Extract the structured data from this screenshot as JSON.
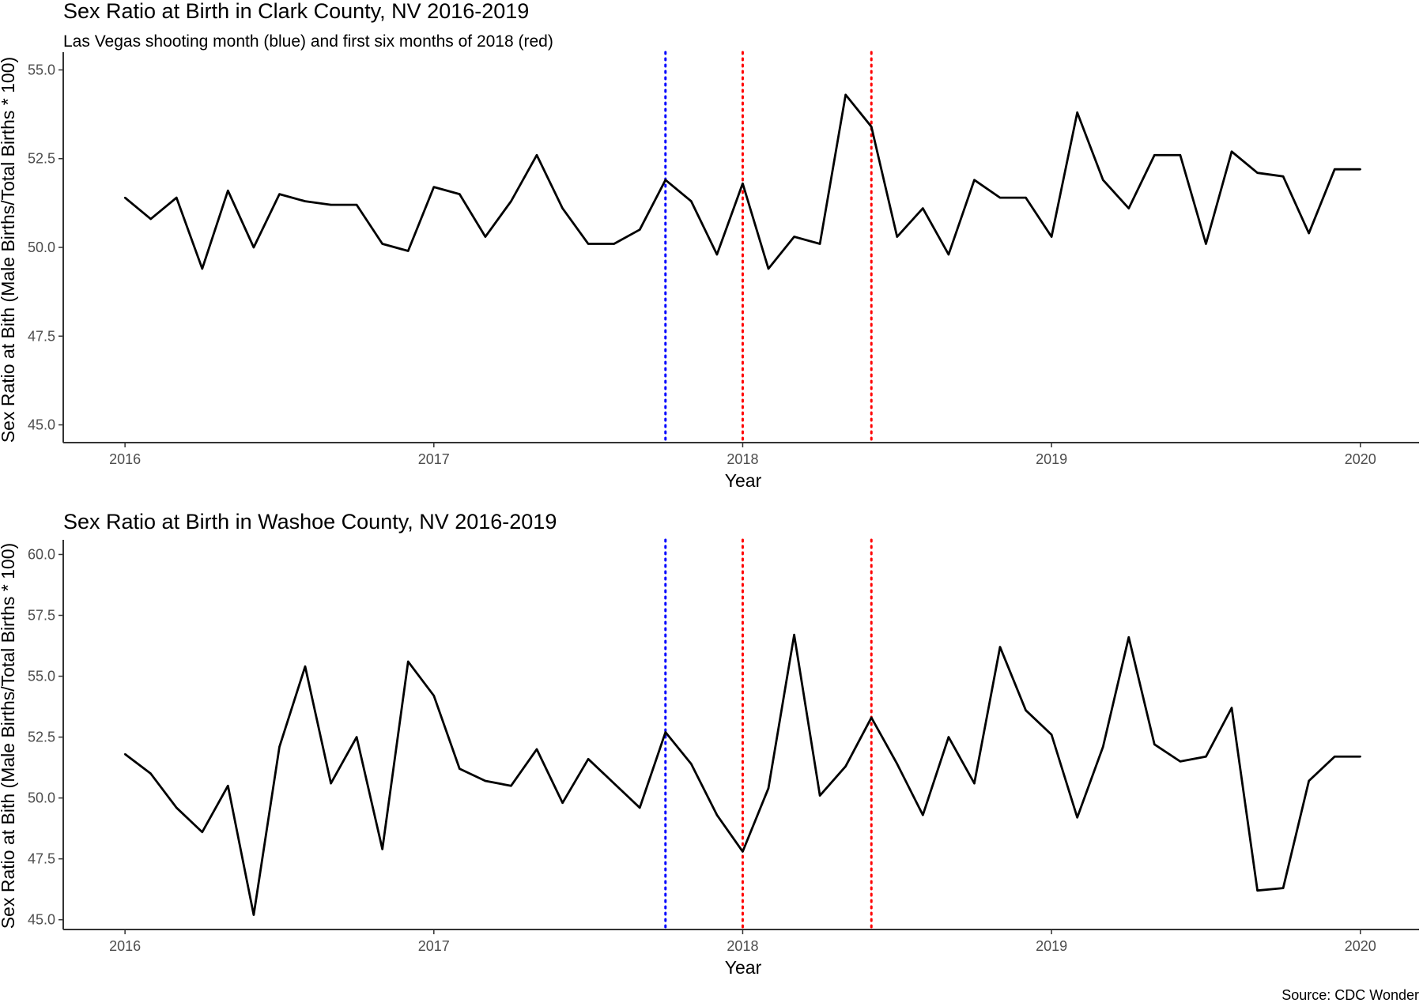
{
  "chart_data": [
    {
      "type": "line",
      "title": "Sex Ratio at Birth in Clark County, NV 2016-2019",
      "subtitle": "Las Vegas shooting month (blue) and first six months of 2018 (red)",
      "xlabel": "Year",
      "ylabel": "Sex Ratio at Bith (Male Births/Total Births * 100)",
      "xlim": [
        2015.8,
        2020.19
      ],
      "ylim": [
        44.5,
        55.5
      ],
      "x_ticks": [
        2016,
        2017,
        2018,
        2019,
        2020
      ],
      "x_tick_labels": [
        "2016",
        "2017",
        "2018",
        "2019",
        "2020"
      ],
      "y_ticks": [
        45.0,
        47.5,
        50.0,
        52.5,
        55.0
      ],
      "y_tick_labels": [
        "45.0",
        "47.5",
        "50.0",
        "52.5",
        "55.0"
      ],
      "grid": false,
      "vlines": [
        {
          "x": 2017.75,
          "color": "#0000ff",
          "style": "dotted"
        },
        {
          "x": 2018.0,
          "color": "#ff0000",
          "style": "dotted"
        },
        {
          "x": 2018.4167,
          "color": "#ff0000",
          "style": "dotted"
        }
      ],
      "series": [
        {
          "color": "#000000",
          "x": [
            2016.0,
            2016.0833,
            2016.1667,
            2016.25,
            2016.3333,
            2016.4167,
            2016.5,
            2016.5833,
            2016.6667,
            2016.75,
            2016.8333,
            2016.9167,
            2017.0,
            2017.0833,
            2017.1667,
            2017.25,
            2017.3333,
            2017.4167,
            2017.5,
            2017.5833,
            2017.6667,
            2017.75,
            2017.8333,
            2017.9167,
            2018.0,
            2018.0833,
            2018.1667,
            2018.25,
            2018.3333,
            2018.4167,
            2018.5,
            2018.5833,
            2018.6667,
            2018.75,
            2018.8333,
            2018.9167,
            2019.0,
            2019.0833,
            2019.1667,
            2019.25,
            2019.3333,
            2019.4167,
            2019.5,
            2019.5833,
            2019.6667,
            2019.75,
            2019.8333,
            2019.9167,
            2020.0
          ],
          "values": [
            51.4,
            50.8,
            51.4,
            49.4,
            51.6,
            50.0,
            51.5,
            51.3,
            51.2,
            51.2,
            50.1,
            49.9,
            51.7,
            51.5,
            50.3,
            51.3,
            52.6,
            51.1,
            50.1,
            50.1,
            50.5,
            51.9,
            51.3,
            49.8,
            51.8,
            49.4,
            50.3,
            50.1,
            54.3,
            53.4,
            50.3,
            51.1,
            49.8,
            51.9,
            51.4,
            51.4,
            50.3,
            53.8,
            51.9,
            51.1,
            52.6,
            52.6,
            50.1,
            52.7,
            52.1,
            52.0,
            50.4,
            52.2,
            52.2
          ]
        }
      ]
    },
    {
      "type": "line",
      "title": "Sex Ratio at Birth in Washoe County, NV 2016-2019",
      "xlabel": "Year",
      "ylabel": "Sex Ratio at Bith (Male Births/Total Births * 100)",
      "xlim": [
        2015.8,
        2020.19
      ],
      "ylim": [
        44.6,
        60.6
      ],
      "x_ticks": [
        2016,
        2017,
        2018,
        2019,
        2020
      ],
      "x_tick_labels": [
        "2016",
        "2017",
        "2018",
        "2019",
        "2020"
      ],
      "y_ticks": [
        45.0,
        47.5,
        50.0,
        52.5,
        55.0,
        57.5,
        60.0
      ],
      "y_tick_labels": [
        "45.0",
        "47.5",
        "50.0",
        "52.5",
        "55.0",
        "57.5",
        "60.0"
      ],
      "grid": false,
      "vlines": [
        {
          "x": 2017.75,
          "color": "#0000ff",
          "style": "dotted"
        },
        {
          "x": 2018.0,
          "color": "#ff0000",
          "style": "dotted"
        },
        {
          "x": 2018.4167,
          "color": "#ff0000",
          "style": "dotted"
        }
      ],
      "series": [
        {
          "color": "#000000",
          "x": [
            2016.0,
            2016.0833,
            2016.1667,
            2016.25,
            2016.3333,
            2016.4167,
            2016.5,
            2016.5833,
            2016.6667,
            2016.75,
            2016.8333,
            2016.9167,
            2017.0,
            2017.0833,
            2017.1667,
            2017.25,
            2017.3333,
            2017.4167,
            2017.5,
            2017.5833,
            2017.6667,
            2017.75,
            2017.8333,
            2017.9167,
            2018.0,
            2018.0833,
            2018.1667,
            2018.25,
            2018.3333,
            2018.4167,
            2018.5,
            2018.5833,
            2018.6667,
            2018.75,
            2018.8333,
            2018.9167,
            2019.0,
            2019.0833,
            2019.1667,
            2019.25,
            2019.3333,
            2019.4167,
            2019.5,
            2019.5833,
            2019.6667,
            2019.75,
            2019.8333,
            2019.9167,
            2020.0
          ],
          "values": [
            51.8,
            51.0,
            49.6,
            48.6,
            50.5,
            45.2,
            52.1,
            55.4,
            50.6,
            52.5,
            47.9,
            55.6,
            54.2,
            51.2,
            50.7,
            50.5,
            52.0,
            49.8,
            51.6,
            50.6,
            49.6,
            52.7,
            51.4,
            49.3,
            47.8,
            50.4,
            56.7,
            50.1,
            51.3,
            53.3,
            51.4,
            49.3,
            52.5,
            50.6,
            56.2,
            53.6,
            52.6,
            49.2,
            52.1,
            56.6,
            52.2,
            51.5,
            51.7,
            53.7,
            46.2,
            46.3,
            50.7,
            51.7,
            51.7
          ]
        }
      ]
    }
  ],
  "caption": "Source: CDC Wonder"
}
